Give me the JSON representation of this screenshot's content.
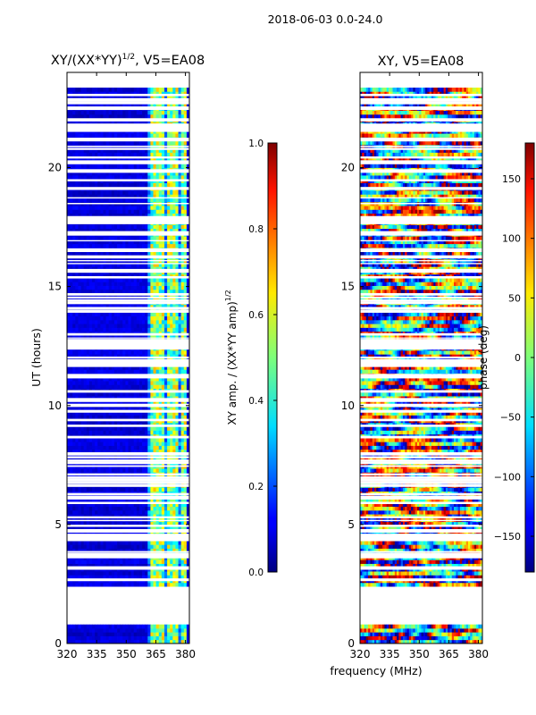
{
  "chart_data": [
    {
      "type": "heatmap",
      "suptitle": "2018-06-03 0.0-24.0",
      "title": "XY/(XX*YY)",
      "title_sup": "1/2",
      "title_suffix": ", V5=EA08",
      "ylabel": "UT (hours)",
      "xlim": [
        320,
        382
      ],
      "ylim": [
        0,
        24
      ],
      "xticks": [
        320,
        335,
        350,
        365,
        380
      ],
      "yticks": [
        0,
        5,
        10,
        15,
        20
      ],
      "colorbar": {
        "cmap": "jet",
        "range": [
          0.0,
          1.0
        ],
        "ticks": [
          "0.0",
          "0.2",
          "0.4",
          "0.6",
          "0.8",
          "1.0"
        ],
        "label": "XY amp. / (XX*YY amp)",
        "label_sup": "1/2"
      },
      "data_blocks_hours": [
        [
          0.0,
          0.75
        ],
        [
          2.4,
          23.3
        ]
      ],
      "bright_channels_mhz": [
        [
          362,
          366
        ],
        [
          367,
          369.5
        ],
        [
          371,
          373
        ],
        [
          374,
          376
        ],
        [
          378,
          380
        ]
      ]
    },
    {
      "type": "heatmap",
      "title": "XY, V5=EA08",
      "xlim": [
        320,
        382
      ],
      "ylim": [
        0,
        24
      ],
      "xticks": [
        320,
        335,
        350,
        365,
        380
      ],
      "yticks": [
        0,
        5,
        10,
        15,
        20
      ],
      "colorbar": {
        "cmap": "jet",
        "range": [
          -180,
          180
        ],
        "ticks": [
          "−150",
          "−100",
          "−50",
          "0",
          "50",
          "100",
          "150"
        ],
        "label": "phase (deg)"
      },
      "data_blocks_hours": [
        [
          0.0,
          0.75
        ],
        [
          2.4,
          23.3
        ]
      ]
    }
  ],
  "xlabel": "frequency (MHz)"
}
